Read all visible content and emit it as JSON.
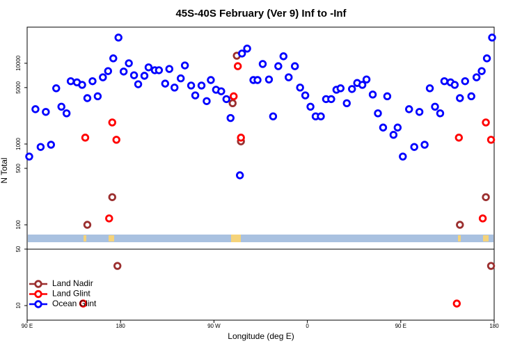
{
  "chart_data": {
    "type": "scatter",
    "title": "45S-40S February (Ver 9)   Inf to -Inf",
    "x_label": "Longitude (deg E)",
    "y_label": "N Total",
    "log_y": true,
    "legend": "lower left",
    "xlim": [
      90,
      540
    ],
    "ylim": [
      6.6,
      28000
    ],
    "xticks": [
      {
        "value": 90,
        "label": "90 E"
      },
      180,
      {
        "value": 270,
        "label": "90 W"
      },
      {
        "value": 360,
        "label": "0"
      },
      {
        "value": 450,
        "label": "90 E"
      },
      {
        "value": 540,
        "label": "180"
      }
    ],
    "yticks": [
      10,
      50,
      100,
      500,
      1000,
      5000,
      10000
    ],
    "series": [
      {
        "name": "Land Nadir",
        "color": "#9b2f2f",
        "x": [
          148,
          172,
          177,
          288,
          292,
          296,
          507,
          532,
          537
        ],
        "values": [
          100,
          220,
          31,
          3200,
          12400,
          1080,
          100,
          220,
          31
        ]
      },
      {
        "name": "Land Glint",
        "color": "#ff0000",
        "x": [
          146,
          172,
          176,
          169,
          289,
          293,
          296,
          144,
          506,
          529,
          532,
          537,
          504
        ],
        "values": [
          1200,
          1850,
          1130,
          120,
          3900,
          9200,
          1200,
          10.6,
          1200,
          120,
          1850,
          1130,
          10.6
        ]
      },
      {
        "name": "Ocean Glint",
        "color": "#0000ff",
        "x": [
          92,
          98,
          103,
          108,
          113,
          118,
          123,
          128,
          132,
          138,
          143,
          148,
          153,
          158,
          163,
          168,
          173,
          178,
          183,
          188,
          193,
          197,
          203,
          207,
          213,
          217,
          223,
          227,
          232,
          238,
          242,
          248,
          252,
          258,
          263,
          267,
          272,
          277,
          282,
          286,
          295,
          297,
          302,
          308,
          312,
          317,
          323,
          327,
          332,
          337,
          342,
          348,
          353,
          358,
          363,
          368,
          373,
          378,
          383,
          388,
          392,
          398,
          403,
          408,
          413,
          417,
          423,
          428,
          433,
          437,
          443,
          447,
          452,
          458,
          463,
          468,
          473,
          478,
          483,
          488,
          492,
          498,
          502,
          507,
          512,
          518,
          523,
          528,
          533,
          538
        ],
        "values": [
          700,
          2700,
          920,
          2500,
          980,
          4900,
          2900,
          2400,
          6000,
          5800,
          5400,
          3700,
          6000,
          3900,
          6700,
          8000,
          11500,
          20800,
          7900,
          10000,
          7100,
          5500,
          7000,
          8900,
          8200,
          8200,
          5600,
          8500,
          5000,
          6500,
          9400,
          5300,
          4000,
          5300,
          3400,
          6200,
          4700,
          4500,
          3600,
          2100,
          410,
          13200,
          15200,
          6200,
          6200,
          9800,
          6300,
          2200,
          9200,
          12200,
          6700,
          9200,
          5000,
          4000,
          2900,
          2200,
          2200,
          3600,
          3600,
          4700,
          4900,
          3200,
          4800,
          5700,
          5400,
          6300,
          4100,
          2400,
          1600,
          3900,
          1300,
          1600,
          700,
          2700,
          920,
          2500,
          980,
          4900,
          2900,
          2400,
          6000,
          5800,
          5400,
          3700,
          6000,
          3900,
          6700,
          8000,
          11500,
          20800
        ]
      }
    ]
  }
}
